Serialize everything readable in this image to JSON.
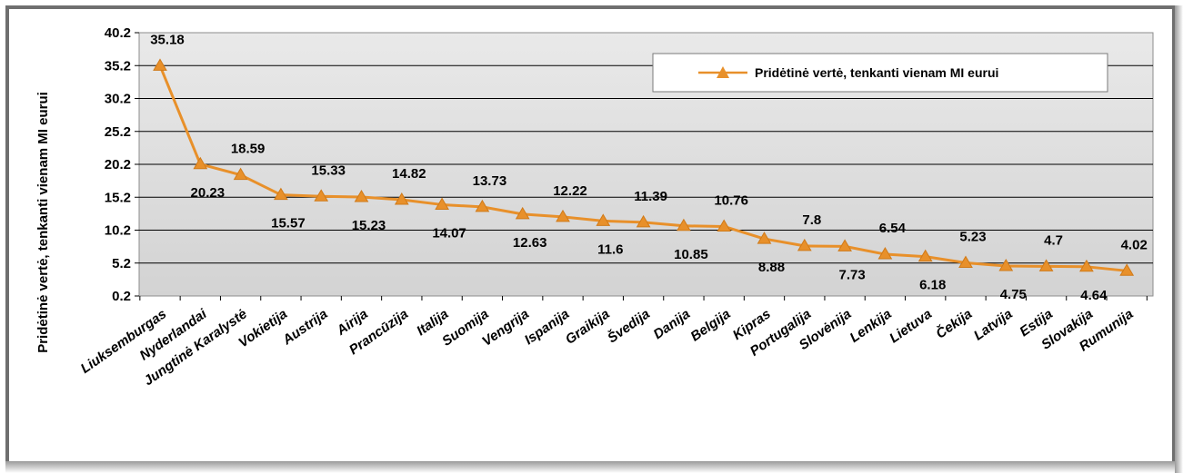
{
  "chart_data": {
    "type": "line",
    "title": "",
    "ylabel": "Pridėtinė vertė, tenkanti vienam MI eurui",
    "xlabel": "",
    "ylim": [
      0.2,
      40.2
    ],
    "yticks": [
      "0.2",
      "5.2",
      "10.2",
      "15.2",
      "20.2",
      "25.2",
      "30.2",
      "35.2",
      "40.2"
    ],
    "grid": true,
    "legend_position": "top-right",
    "categories": [
      "Liuksemburgas",
      "Nyderlandai",
      "Jungtinė Karalystė",
      "Vokietija",
      "Austrija",
      "Airija",
      "Prancūzija",
      "Italija",
      "Suomija",
      "Vengrija",
      "Ispanija",
      "Graikija",
      "Švedija",
      "Danija",
      "Belgija",
      "Kipras",
      "Portugalija",
      "Slovėnija",
      "Lenkija",
      "Lietuva",
      "Čekija",
      "Latvija",
      "Estija",
      "Slovakija",
      "Rumunija"
    ],
    "series": [
      {
        "name": "Pridėtinė vertė, tenkanti vienam MI eurui",
        "color": "#e8902a",
        "values": [
          35.18,
          20.23,
          18.59,
          15.57,
          15.33,
          15.23,
          14.82,
          14.07,
          13.73,
          12.63,
          12.22,
          11.6,
          11.39,
          10.85,
          10.76,
          8.88,
          7.8,
          7.73,
          6.54,
          6.18,
          5.23,
          4.75,
          4.7,
          4.64,
          4.02
        ],
        "labels": [
          "35.18",
          "20.23",
          "18.59",
          "15.57",
          "15.33",
          "15.23",
          "14.82",
          "14.07",
          "13.73",
          "12.63",
          "12.22",
          "11.6",
          "11.39",
          "10.85",
          "10.76",
          "8.88",
          "7.8",
          "7.73",
          "6.54",
          "6.18",
          "5.23",
          "4.75",
          "4.7",
          "4.64",
          "4.02"
        ]
      }
    ]
  }
}
